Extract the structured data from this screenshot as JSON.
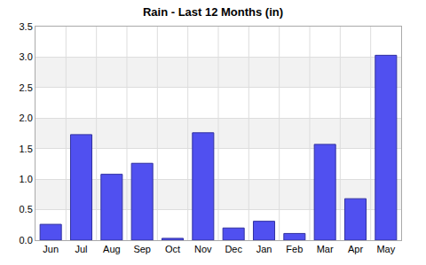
{
  "chart_data": {
    "type": "bar",
    "title": "Rain - Last 12 Months (in)",
    "categories": [
      "Jun",
      "Jul",
      "Aug",
      "Sep",
      "Oct",
      "Nov",
      "Dec",
      "Jan",
      "Feb",
      "Mar",
      "Apr",
      "May"
    ],
    "values": [
      0.26,
      1.73,
      1.08,
      1.26,
      0.03,
      1.76,
      0.2,
      0.31,
      0.11,
      1.57,
      0.68,
      3.03
    ],
    "color": "#5050f0",
    "ylim": [
      0,
      3.5
    ],
    "yticks": [
      {
        "value": 0,
        "label": "0.0"
      },
      0.5,
      {
        "value": 1,
        "label": "1.0"
      },
      1.5,
      {
        "value": 2,
        "label": "2.0"
      },
      2.5,
      {
        "value": 3,
        "label": "3.0"
      },
      3.5
    ],
    "grid": true
  }
}
